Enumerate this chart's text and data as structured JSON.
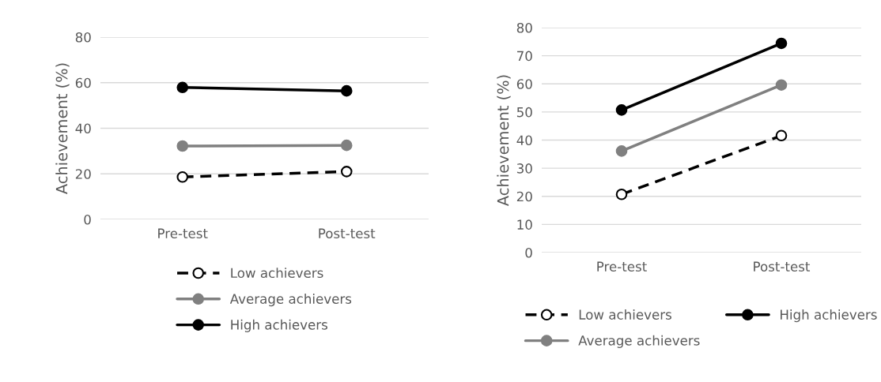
{
  "chart_data": [
    {
      "type": "line",
      "ylabel": "Achievement (%)",
      "categories": [
        "Pre-test",
        "Post-test"
      ],
      "ylim": [
        0,
        80
      ],
      "yticks": [
        0,
        20,
        40,
        60,
        80
      ],
      "grid": "y",
      "legend": "bottom",
      "marker": "circle",
      "series": [
        {
          "name": "Low achievers",
          "color": "#000000",
          "values": [
            18.6,
            21.0
          ],
          "line_style": "dashed"
        },
        {
          "name": "Average achievers",
          "color": "#808080",
          "values": [
            32.2,
            32.5
          ],
          "line_style": "solid"
        },
        {
          "name": "High achievers",
          "color": "#000000",
          "values": [
            57.9,
            56.4
          ],
          "line_style": "solid"
        }
      ]
    },
    {
      "type": "line",
      "ylabel": "Achievement (%)",
      "categories": [
        "Pre-test",
        "Post-test"
      ],
      "ylim": [
        0,
        80
      ],
      "yticks": [
        0,
        10,
        20,
        30,
        40,
        50,
        60,
        70,
        80
      ],
      "grid": "y",
      "legend": "bottom",
      "marker": "circle",
      "series": [
        {
          "name": "Low achievers",
          "color": "#000000",
          "values": [
            20.7,
            41.6
          ],
          "line_style": "dashed"
        },
        {
          "name": "Average achievers",
          "color": "#808080",
          "values": [
            36.1,
            59.6
          ],
          "line_style": "solid"
        },
        {
          "name": "High achievers",
          "color": "#000000",
          "values": [
            50.7,
            74.4
          ],
          "line_style": "solid"
        }
      ]
    }
  ]
}
